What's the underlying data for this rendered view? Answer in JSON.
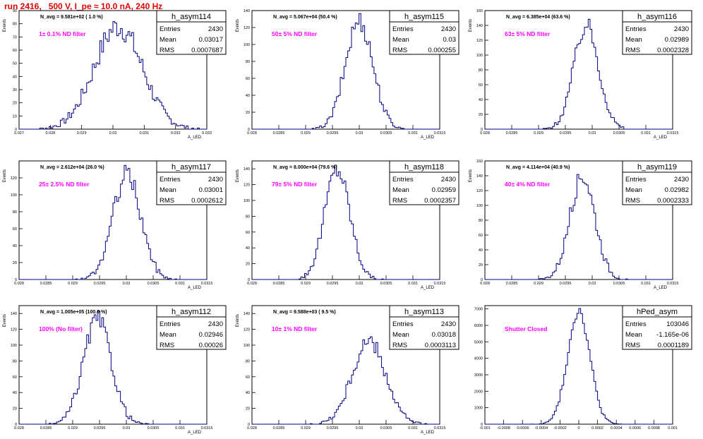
{
  "run_title": "run 2416,   500 V, I_pe ≈ 10.0 nA, 240 Hz",
  "colors": {
    "title": "#e00000",
    "filter_label": "#ff00ff",
    "histogram": "#000080",
    "axes": "#000000"
  },
  "chart_data": [
    {
      "type": "bar",
      "name": "h_asym114",
      "ylabel": "Events",
      "xlabel": "A_LED",
      "xlim": [
        0.027,
        0.033
      ],
      "ylim": [
        0,
        90
      ],
      "xticks": [
        "0.027",
        "0.028",
        "0.029",
        "0.03",
        "0.031",
        "0.032",
        "0.033"
      ],
      "yticks": [
        "0",
        "10",
        "20",
        "30",
        "40",
        "50",
        "60",
        "70",
        "80",
        "90"
      ],
      "n_avg": "N_avg = 9.581e+02 ( 1.0 %)",
      "filter": "1± 0.1% ND filter",
      "stats": {
        "entries": "2430",
        "mean": "0.03017",
        "rms": "0.0007687"
      },
      "gaussian": {
        "mean": 0.03017,
        "sigma": 0.0007687,
        "peak": 78
      }
    },
    {
      "type": "bar",
      "name": "h_asym115",
      "ylabel": "Events",
      "xlabel": "A_LED",
      "xlim": [
        0.028,
        0.0315
      ],
      "ylim": [
        0,
        140
      ],
      "xticks": [
        "0.028",
        "0.0285",
        "0.029",
        "0.0295",
        "0.03",
        "0.0305",
        "0.031",
        "0.0315"
      ],
      "yticks": [
        "0",
        "20",
        "40",
        "60",
        "80",
        "100",
        "120",
        "140"
      ],
      "n_avg": "N_avg = 5.067e+04 (50.4 %)",
      "filter": "50± 5% ND filter",
      "stats": {
        "entries": "2430",
        "mean": "0.03",
        "rms": "0.000255"
      },
      "gaussian": {
        "mean": 0.03,
        "sigma": 0.000255,
        "peak": 128
      }
    },
    {
      "type": "bar",
      "name": "h_asym116",
      "ylabel": "Events",
      "xlabel": "A_LED",
      "xlim": [
        0.028,
        0.0315
      ],
      "ylim": [
        0,
        160
      ],
      "xticks": [
        "0.028",
        "0.0285",
        "0.029",
        "0.0295",
        "0.03",
        "0.0305",
        "0.031",
        "0.0315"
      ],
      "yticks": [
        "0",
        "20",
        "40",
        "60",
        "80",
        "100",
        "120",
        "140",
        "160"
      ],
      "n_avg": "N_avg = 6.385e+04 (63.6 %)",
      "filter": "63± 5% ND filter",
      "stats": {
        "entries": "2430",
        "mean": "0.02989",
        "rms": "0.0002328"
      },
      "gaussian": {
        "mean": 0.02989,
        "sigma": 0.0002328,
        "peak": 140
      }
    },
    {
      "type": "bar",
      "name": "h_asym117",
      "ylabel": "Events",
      "xlabel": "A_LED",
      "xlim": [
        0.028,
        0.0315
      ],
      "ylim": [
        0,
        140
      ],
      "xticks": [
        "0.028",
        "0.0285",
        "0.029",
        "0.0295",
        "0.03",
        "0.0305",
        "0.031",
        "0.0315"
      ],
      "yticks": [
        "0",
        "20",
        "40",
        "60",
        "80",
        "100",
        "120"
      ],
      "n_avg": "N_avg = 2.612e+04 (26.0 %)",
      "filter": "25± 2.5% ND filter",
      "stats": {
        "entries": "2430",
        "mean": "0.03001",
        "rms": "0.0002612"
      },
      "gaussian": {
        "mean": 0.03001,
        "sigma": 0.0002612,
        "peak": 124
      }
    },
    {
      "type": "bar",
      "name": "h_asym118",
      "ylabel": "Events",
      "xlabel": "A_LED",
      "xlim": [
        0.028,
        0.0315
      ],
      "ylim": [
        0,
        150
      ],
      "xticks": [
        "0.028",
        "0.0285",
        "0.029",
        "0.0295",
        "0.03",
        "0.0305",
        "0.031",
        "0.0315"
      ],
      "yticks": [
        "0",
        "20",
        "40",
        "60",
        "80",
        "100",
        "120",
        "140"
      ],
      "n_avg": "N_avg = 8.000e+04 (79.6 %)",
      "filter": "79± 5% ND filter",
      "stats": {
        "entries": "2430",
        "mean": "0.02959",
        "rms": "0.0002357"
      },
      "gaussian": {
        "mean": 0.02959,
        "sigma": 0.0002357,
        "peak": 140
      }
    },
    {
      "type": "bar",
      "name": "h_asym119",
      "ylabel": "Events",
      "xlabel": "A_LED",
      "xlim": [
        0.028,
        0.0315
      ],
      "ylim": [
        0,
        160
      ],
      "xticks": [
        "0.028",
        "0.0285",
        "0.029",
        "0.0295",
        "0.03",
        "0.0305",
        "0.031",
        "0.0315"
      ],
      "yticks": [
        "0",
        "20",
        "40",
        "60",
        "80",
        "100",
        "120",
        "140",
        "160"
      ],
      "n_avg": "N_avg = 4.114e+04 (40.9 %)",
      "filter": "40± 4% ND filter",
      "stats": {
        "entries": "2430",
        "mean": "0.02982",
        "rms": "0.0002333"
      },
      "gaussian": {
        "mean": 0.02982,
        "sigma": 0.0002333,
        "peak": 140
      }
    },
    {
      "type": "bar",
      "name": "h_asym112",
      "ylabel": "Events",
      "xlabel": "A_LED",
      "xlim": [
        0.028,
        0.0315
      ],
      "ylim": [
        0,
        150
      ],
      "xticks": [
        "0.028",
        "0.0285",
        "0.029",
        "0.0295",
        "0.03",
        "0.0305",
        "0.031",
        "0.0315"
      ],
      "yticks": [
        "0",
        "20",
        "40",
        "60",
        "80",
        "100",
        "120",
        "140"
      ],
      "n_avg": "N_avg = 1.005e+05 (100.0 %)",
      "filter": "100% (No filter)",
      "stats": {
        "entries": "2430",
        "mean": "0.02946",
        "rms": "0.00026"
      },
      "gaussian": {
        "mean": 0.02946,
        "sigma": 0.00026,
        "peak": 132
      }
    },
    {
      "type": "bar",
      "name": "h_asym113",
      "ylabel": "Events",
      "xlabel": "A_LED",
      "xlim": [
        0.028,
        0.0315
      ],
      "ylim": [
        0,
        150
      ],
      "xticks": [
        "0.028",
        "0.0285",
        "0.029",
        "0.0295",
        "0.03",
        "0.0305",
        "0.031",
        "0.0315"
      ],
      "yticks": [
        "0",
        "20",
        "40",
        "60",
        "80",
        "100",
        "120",
        "140"
      ],
      "n_avg": "N_avg = 9.588e+03 ( 9.5 %)",
      "filter": "10± 1% ND filter",
      "stats": {
        "entries": "2430",
        "mean": "0.03018",
        "rms": "0.0003113"
      },
      "gaussian": {
        "mean": 0.03018,
        "sigma": 0.0003113,
        "peak": 104
      }
    },
    {
      "type": "bar",
      "name": "hPed_asym",
      "ylabel": "",
      "xlabel": "",
      "xlim": [
        -0.001,
        0.001
      ],
      "ylim": [
        0,
        7200
      ],
      "xticks": [
        "-0.001",
        "-0.0008",
        "-0.0006",
        "-0.0004",
        "-0.0002",
        "0",
        "0.0002",
        "0.0004",
        "0.0006",
        "0.0008",
        "0.001"
      ],
      "yticks": [
        "0",
        "1000",
        "2000",
        "3000",
        "4000",
        "5000",
        "6000",
        "7000"
      ],
      "n_avg": "",
      "filter": "Shutter Closed",
      "stats": {
        "entries": "103046",
        "mean": "-1.165e-06",
        "rms": "0.0001189"
      },
      "gaussian": {
        "mean": 0.0,
        "sigma": 0.0001189,
        "peak": 6900
      }
    }
  ],
  "stat_labels": {
    "entries": "Entries",
    "mean": "Mean",
    "rms": "RMS"
  }
}
